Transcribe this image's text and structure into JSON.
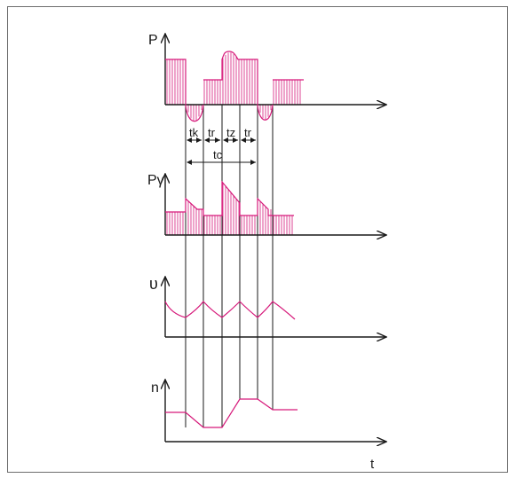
{
  "labels": {
    "p": "P",
    "pgamma": "Pγ",
    "v": "υ",
    "n": "n",
    "t": "t",
    "tk": "tk",
    "tr1": "tr",
    "tz": "tz",
    "tr2": "tr",
    "tc": "tc"
  },
  "colors": {
    "curve": "#d6197a",
    "axis": "#1a1a1a",
    "frame": "#6d6d6d"
  }
}
